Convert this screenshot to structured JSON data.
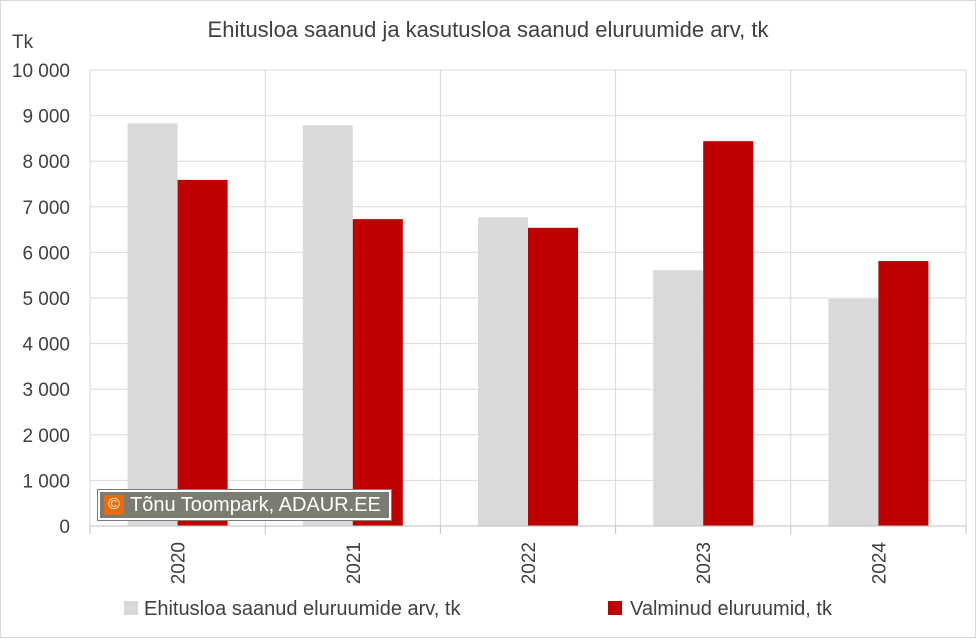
{
  "chart_data": {
    "type": "bar",
    "title": "Ehitusloa saanud ja kasutusloa saanud eluruumide arv, tk",
    "ylabel": "Tk",
    "xlabel": "",
    "categories": [
      "2020",
      "2021",
      "2022",
      "2023",
      "2024"
    ],
    "series": [
      {
        "name": "Ehitusloa saanud eluruumide arv, tk",
        "color": "#d9d9d9",
        "values": [
          8830,
          8790,
          6770,
          5610,
          4980
        ]
      },
      {
        "name": "Valminud eluruumid, tk",
        "color": "#c00000",
        "values": [
          7590,
          6730,
          6540,
          8440,
          5810
        ]
      }
    ],
    "ylim": [
      0,
      10000
    ],
    "yticks": [
      0,
      1000,
      2000,
      3000,
      4000,
      5000,
      6000,
      7000,
      8000,
      9000,
      10000
    ],
    "ytick_labels": [
      "0",
      "1 000",
      "2 000",
      "3 000",
      "4 000",
      "5 000",
      "6 000",
      "7 000",
      "8 000",
      "9 000",
      "10 000"
    ],
    "grid": true,
    "legend_position": "bottom"
  },
  "watermark": {
    "symbol": "©",
    "text": "Tõnu Toompark, ADAUR.EE"
  }
}
